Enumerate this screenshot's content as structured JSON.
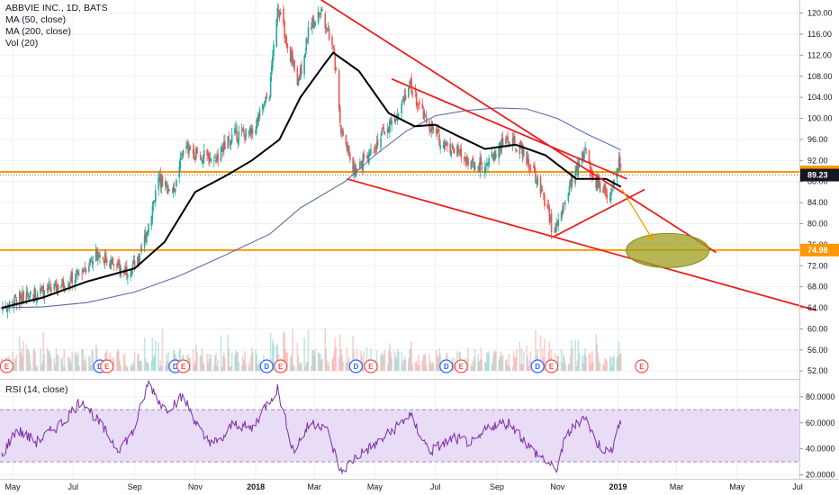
{
  "legend": {
    "title": "ABBVIE INC., 1D, BATS",
    "ma50": "MA (50, close)",
    "ma200": "MA (200, close)",
    "vol": "Vol (20)",
    "rsi": "RSI (14, close)"
  },
  "chart_data": [
    {
      "type": "candlestick",
      "title": "ABBVIE INC., 1D, BATS",
      "x_ticks": [
        "May",
        "Jul",
        "Sep",
        "Nov",
        "2018",
        "Mar",
        "May",
        "Jul",
        "Sep",
        "Nov",
        "2019",
        "Mar",
        "May",
        "Jul"
      ],
      "y_ticks": [
        "120.00",
        "116.00",
        "112.00",
        "108.00",
        "104.00",
        "100.00",
        "96.00",
        "92.00",
        "88.00",
        "84.00",
        "80.00",
        "76.00",
        "72.00",
        "68.00",
        "64.00",
        "60.00",
        "56.00",
        "52.00"
      ],
      "ylim": [
        50.5,
        122.5
      ],
      "price_close_path": [
        [
          "2017-04-20",
          64.0
        ],
        [
          "2017-05-15",
          66.5
        ],
        [
          "2017-06-10",
          67.5
        ],
        [
          "2017-07-05",
          70.0
        ],
        [
          "2017-07-25",
          74.5
        ],
        [
          "2017-08-20",
          71.0
        ],
        [
          "2017-09-05",
          72.5
        ],
        [
          "2017-09-15",
          80.0
        ],
        [
          "2017-09-25",
          88.5
        ],
        [
          "2017-10-10",
          86.0
        ],
        [
          "2017-10-20",
          94.5
        ],
        [
          "2017-11-05",
          93.0
        ],
        [
          "2017-11-20",
          92.0
        ],
        [
          "2017-12-10",
          97.0
        ],
        [
          "2017-12-28",
          97.0
        ],
        [
          "2018-01-15",
          105.0
        ],
        [
          "2018-01-23",
          122.0
        ],
        [
          "2018-02-05",
          112.0
        ],
        [
          "2018-02-12",
          106.0
        ],
        [
          "2018-02-25",
          118.0
        ],
        [
          "2018-03-08",
          120.5
        ],
        [
          "2018-03-20",
          114.0
        ],
        [
          "2018-03-28",
          98.0
        ],
        [
          "2018-04-10",
          90.0
        ],
        [
          "2018-04-20",
          92.0
        ],
        [
          "2018-05-05",
          96.0
        ],
        [
          "2018-05-20",
          100.0
        ],
        [
          "2018-06-05",
          106.5
        ],
        [
          "2018-06-20",
          100.0
        ],
        [
          "2018-07-05",
          96.0
        ],
        [
          "2018-07-20",
          94.0
        ],
        [
          "2018-08-10",
          91.0
        ],
        [
          "2018-08-25",
          92.0
        ],
        [
          "2018-09-10",
          96.0
        ],
        [
          "2018-09-25",
          94.0
        ],
        [
          "2018-10-08",
          90.0
        ],
        [
          "2018-10-20",
          84.0
        ],
        [
          "2018-10-28",
          78.0
        ],
        [
          "2018-11-05",
          82.0
        ],
        [
          "2018-11-15",
          88.0
        ],
        [
          "2018-11-28",
          94.0
        ],
        [
          "2018-12-08",
          88.0
        ],
        [
          "2018-12-18",
          86.0
        ],
        [
          "2018-12-24",
          84.0
        ],
        [
          "2018-12-28",
          88.0
        ],
        [
          "2019-01-03",
          92.0
        ],
        [
          "2019-01-04",
          89.5
        ]
      ],
      "ma50_path": [
        [
          "2017-04-20",
          64.0
        ],
        [
          "2017-06-01",
          66.0
        ],
        [
          "2017-07-15",
          69.0
        ],
        [
          "2017-09-01",
          71.5
        ],
        [
          "2017-10-01",
          76.5
        ],
        [
          "2017-11-01",
          86.0
        ],
        [
          "2017-12-01",
          89.0
        ],
        [
          "2017-12-28",
          92.0
        ],
        [
          "2018-01-25",
          96.0
        ],
        [
          "2018-02-15",
          104.0
        ],
        [
          "2018-03-10",
          110.0
        ],
        [
          "2018-03-20",
          112.5
        ],
        [
          "2018-04-15",
          109.0
        ],
        [
          "2018-05-15",
          101.0
        ],
        [
          "2018-06-10",
          98.5
        ],
        [
          "2018-07-01",
          98.8
        ],
        [
          "2018-07-20",
          97.0
        ],
        [
          "2018-08-20",
          94.2
        ],
        [
          "2018-09-20",
          95.0
        ],
        [
          "2018-10-20",
          93.0
        ],
        [
          "2018-11-20",
          88.5
        ],
        [
          "2018-12-20",
          88.5
        ],
        [
          "2019-01-04",
          87.0
        ]
      ],
      "ma200_path": [
        [
          "2017-04-20",
          64.0
        ],
        [
          "2017-06-01",
          64.2
        ],
        [
          "2017-07-15",
          65.0
        ],
        [
          "2017-09-01",
          67.0
        ],
        [
          "2017-10-15",
          70.0
        ],
        [
          "2017-12-01",
          74.0
        ],
        [
          "2018-01-15",
          78.0
        ],
        [
          "2018-02-15",
          83.0
        ],
        [
          "2018-04-01",
          88.0
        ],
        [
          "2018-05-01",
          93.0
        ],
        [
          "2018-06-01",
          97.5
        ],
        [
          "2018-07-01",
          100.5
        ],
        [
          "2018-08-01",
          101.5
        ],
        [
          "2018-09-01",
          102.0
        ],
        [
          "2018-10-01",
          101.8
        ],
        [
          "2018-11-01",
          100.0
        ],
        [
          "2018-12-01",
          97.0
        ],
        [
          "2019-01-04",
          94.0
        ]
      ],
      "price_tags": [
        {
          "label": "89.84",
          "value": 89.84,
          "color": "#ff9800"
        },
        {
          "label": "89.23",
          "value": 89.23,
          "color": "#131722"
        },
        {
          "label": "74.98",
          "value": 74.98,
          "color": "#ff9800"
        }
      ],
      "horizontal_lines": [
        {
          "value": 89.84,
          "color": "#ff9800"
        },
        {
          "value": 74.98,
          "color": "#ff9800"
        }
      ],
      "trendlines": [
        {
          "from": [
            "2018-02-28",
            123.5
          ],
          "to": [
            "2019-04-10",
            74.5
          ],
          "color": "#e91e1e"
        },
        {
          "from": [
            "2018-05-18",
            107.5
          ],
          "to": [
            "2019-01-10",
            88.5
          ],
          "color": "#e91e1e"
        },
        {
          "from": [
            "2018-04-03",
            88.5
          ],
          "to": [
            "2019-07-20",
            63.5
          ],
          "color": "#e91e1e"
        },
        {
          "from": [
            "2018-10-28",
            77.5
          ],
          "to": [
            "2019-01-28",
            86.5
          ],
          "color": "#e91e1e"
        }
      ],
      "projection_arrow": {
        "from": [
          "2019-01-05",
          86.5
        ],
        "to": [
          "2019-02-05",
          77.0
        ],
        "color": "#ff9800"
      },
      "target_ellipse": {
        "center": [
          "2019-02-20",
          74.9
        ],
        "color": "#9e9e1f"
      },
      "event_markers": [
        {
          "date": "2017-04-25",
          "type": "E"
        },
        {
          "date": "2017-07-28",
          "type": "D"
        },
        {
          "date": "2017-08-04",
          "type": "E"
        },
        {
          "date": "2017-10-12",
          "type": "D"
        },
        {
          "date": "2017-10-20",
          "type": "E"
        },
        {
          "date": "2018-01-12",
          "type": "D"
        },
        {
          "date": "2018-01-26",
          "type": "E"
        },
        {
          "date": "2018-04-12",
          "type": "D"
        },
        {
          "date": "2018-04-27",
          "type": "E"
        },
        {
          "date": "2018-07-12",
          "type": "D"
        },
        {
          "date": "2018-07-27",
          "type": "E"
        },
        {
          "date": "2018-10-12",
          "type": "D"
        },
        {
          "date": "2018-10-26",
          "type": "E"
        },
        {
          "date": "2019-01-25",
          "type": "E"
        }
      ],
      "colors": {
        "up": "#26a69a",
        "down": "#ef5350",
        "ma50": "#000000",
        "ma200": "#5b6ea8"
      }
    },
    {
      "type": "line",
      "title": "RSI (14, close)",
      "y_ticks": [
        "80.0000",
        "60.0000",
        "40.0000",
        "20.0000"
      ],
      "ylim": [
        17.0,
        93.0
      ],
      "bands": {
        "upper": 70,
        "lower": 30
      },
      "rsi_path": [
        [
          "2017-04-20",
          35.0
        ],
        [
          "2017-05-05",
          55.0
        ],
        [
          "2017-05-25",
          45.0
        ],
        [
          "2017-06-20",
          60.0
        ],
        [
          "2017-07-10",
          78.0
        ],
        [
          "2017-07-25",
          62.0
        ],
        [
          "2017-08-15",
          40.0
        ],
        [
          "2017-08-30",
          52.0
        ],
        [
          "2017-09-15",
          91.0
        ],
        [
          "2017-10-01",
          70.0
        ],
        [
          "2017-10-20",
          80.0
        ],
        [
          "2017-11-10",
          48.0
        ],
        [
          "2017-11-25",
          44.0
        ],
        [
          "2017-12-10",
          60.0
        ],
        [
          "2017-12-28",
          55.0
        ],
        [
          "2018-01-10",
          72.0
        ],
        [
          "2018-01-23",
          86.0
        ],
        [
          "2018-02-08",
          38.0
        ],
        [
          "2018-02-25",
          60.0
        ],
        [
          "2018-03-12",
          58.0
        ],
        [
          "2018-03-28",
          22.0
        ],
        [
          "2018-04-12",
          34.0
        ],
        [
          "2018-05-05",
          45.0
        ],
        [
          "2018-05-20",
          55.0
        ],
        [
          "2018-06-05",
          66.0
        ],
        [
          "2018-06-25",
          38.0
        ],
        [
          "2018-07-20",
          48.0
        ],
        [
          "2018-08-10",
          44.0
        ],
        [
          "2018-08-25",
          58.0
        ],
        [
          "2018-09-15",
          60.0
        ],
        [
          "2018-10-05",
          40.0
        ],
        [
          "2018-10-22",
          30.0
        ],
        [
          "2018-10-30",
          22.0
        ],
        [
          "2018-11-10",
          50.0
        ],
        [
          "2018-11-28",
          66.0
        ],
        [
          "2018-12-10",
          45.0
        ],
        [
          "2018-12-24",
          36.0
        ],
        [
          "2019-01-03",
          62.0
        ],
        [
          "2019-01-04",
          55.0
        ]
      ],
      "colors": {
        "line": "#7b2ea8",
        "band": "#e8dcf6"
      }
    }
  ]
}
